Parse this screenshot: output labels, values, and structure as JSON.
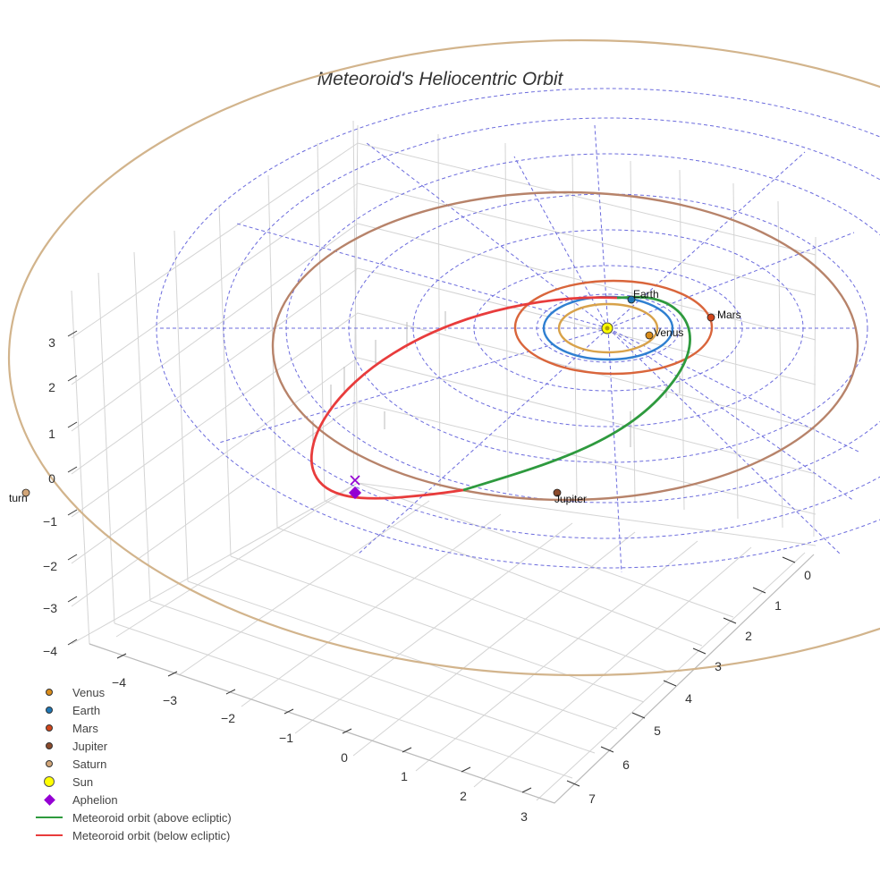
{
  "chart_data": {
    "type": "scatter3d",
    "title": "Meteoroid's Heliocentric Orbit",
    "x_ticks": [
      "−4",
      "−3",
      "−2",
      "−1",
      "0",
      "1",
      "2",
      "3"
    ],
    "y_ticks": [
      "0",
      "1",
      "2",
      "3",
      "4",
      "5",
      "6",
      "7"
    ],
    "z_ticks": [
      "3",
      "2",
      "1",
      "0",
      "−1",
      "−2",
      "−3",
      "−4"
    ],
    "planets": [
      {
        "name": "Venus",
        "label": "Venus",
        "color": "#d98c1a",
        "orbit_color": "#d8a24a",
        "radius_au": 0.72
      },
      {
        "name": "Earth",
        "label": "Earth",
        "color": "#1f77b4",
        "orbit_color": "#2f7fd1",
        "radius_au": 1.0
      },
      {
        "name": "Mars",
        "label": "Mars",
        "color": "#d1461b",
        "orbit_color": "#d9653b",
        "radius_au": 1.52
      },
      {
        "name": "Jupiter",
        "label": "Jupiter",
        "color": "#8b4a2b",
        "orbit_color": "#b7836a",
        "radius_au": 5.2
      },
      {
        "name": "Saturn",
        "label": "turn",
        "color": "#d2a679",
        "orbit_color": "#d2b48c",
        "radius_au": 9.5
      }
    ],
    "sun": {
      "name": "Sun",
      "color": "#ffff00"
    },
    "aphelion": {
      "name": "Aphelion",
      "color": "#9400d3"
    },
    "orbit_segments": [
      {
        "name": "Meteoroid orbit (above ecliptic)",
        "color": "#2e9a3e"
      },
      {
        "name": "Meteoroid orbit (below ecliptic)",
        "color": "#e83c3c"
      }
    ],
    "ecliptic_grid": {
      "rings": "dashed",
      "color": "#6b6bdd"
    },
    "legend_placement": "bottom-left"
  },
  "legend": [
    {
      "label": "Venus",
      "kind": "dot",
      "color": "#d98c1a"
    },
    {
      "label": "Earth",
      "kind": "dot",
      "color": "#1f77b4"
    },
    {
      "label": "Mars",
      "kind": "dot",
      "color": "#d1461b"
    },
    {
      "label": "Jupiter",
      "kind": "dot",
      "color": "#8b4a2b"
    },
    {
      "label": "Saturn",
      "kind": "dot",
      "color": "#d2a679"
    },
    {
      "label": "Sun",
      "kind": "sun",
      "color": "#ffff00"
    },
    {
      "label": "Aphelion",
      "kind": "diamond",
      "color": "#9400d3"
    },
    {
      "label": "Meteoroid orbit (above ecliptic)",
      "kind": "line",
      "color": "#2e9a3e"
    },
    {
      "label": "Meteoroid orbit (below ecliptic)",
      "kind": "line",
      "color": "#e83c3c"
    }
  ]
}
